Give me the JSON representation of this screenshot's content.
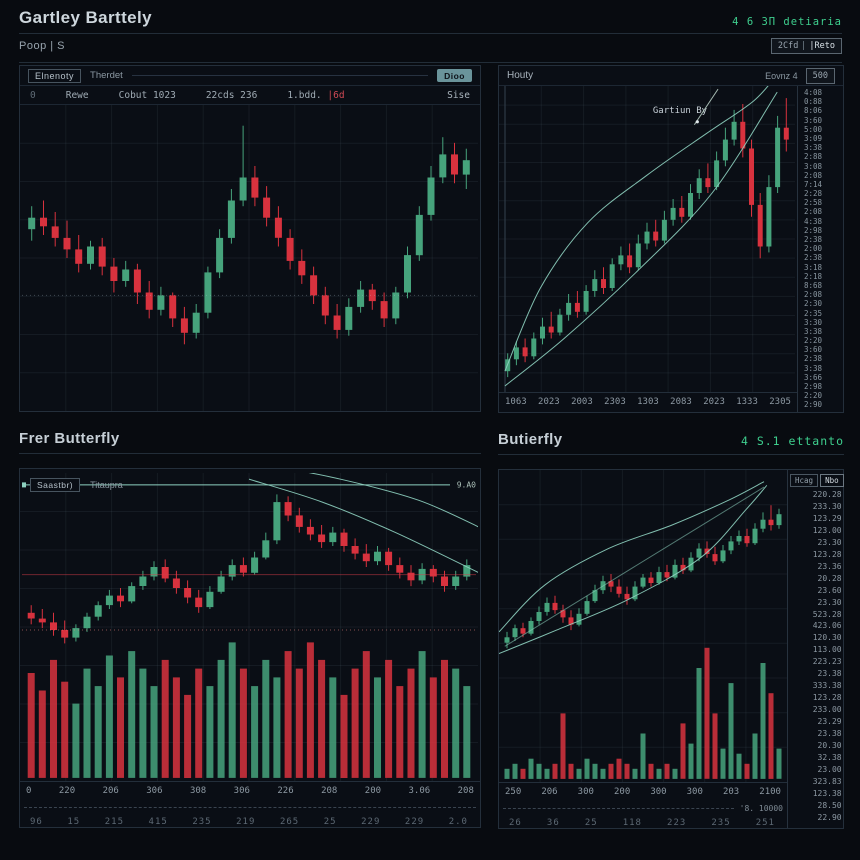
{
  "colors": {
    "up": "#46a37c",
    "down": "#d8323e",
    "teal": "#8ed1c0",
    "grid": "rgba(130,165,180,0.09)",
    "annotation": "#a8bdb4",
    "hline_label": "#a9bdb6"
  },
  "ui": {
    "header": {
      "title": "Gartley Barttely",
      "status_green": "4 6 3Π detiaria",
      "subtitle": "Poop | S",
      "toggle_left": "2Cfd",
      "toggle_right": "|Reto"
    },
    "p1": {
      "box": "Elnenoty",
      "tab": "Therdet",
      "button": "Dioo",
      "cell0": "0",
      "cell1": "Rewe",
      "cell2": "Cobut 1023",
      "cell3": "22cds 236",
      "cell4a": "1.bdd.",
      "cell4b": "|6d",
      "cell5": "Sise"
    },
    "p2": {
      "left": "Houty",
      "right": "Eovnz 4",
      "button": "500"
    },
    "sections": {
      "left": "Frer Butterfly",
      "right": "Butierfly",
      "right_green": "4 S.1 ettanto"
    },
    "p3": {
      "box": "Saastbr)",
      "tab": "Titaupra"
    },
    "p4": {
      "ybox_left": "Hcag",
      "ybox_right": "Nbo",
      "dash_label": "'8. 10000"
    }
  },
  "chart_data": [
    {
      "id": "p1",
      "type": "candlestick",
      "title": "Gartley pattern candlestick chart",
      "grid": {
        "v": 10,
        "h": 8
      },
      "band": [
        0.03,
        0.97
      ],
      "hlines": [
        {
          "v": 37,
          "color": "rgba(190,205,215,0.30)",
          "dash": "1,3"
        }
      ],
      "candles": [
        [
          60,
          68,
          56,
          64
        ],
        [
          64,
          70,
          58,
          61
        ],
        [
          61,
          66,
          54,
          57
        ],
        [
          57,
          63,
          50,
          53
        ],
        [
          53,
          58,
          45,
          48
        ],
        [
          48,
          56,
          46,
          54
        ],
        [
          54,
          57,
          44,
          47
        ],
        [
          47,
          50,
          38,
          42
        ],
        [
          42,
          49,
          40,
          46
        ],
        [
          46,
          48,
          34,
          38
        ],
        [
          38,
          42,
          29,
          32
        ],
        [
          32,
          40,
          30,
          37
        ],
        [
          37,
          38,
          26,
          29
        ],
        [
          29,
          33,
          20,
          24
        ],
        [
          24,
          34,
          22,
          31
        ],
        [
          31,
          47,
          29,
          45
        ],
        [
          45,
          60,
          43,
          57
        ],
        [
          57,
          74,
          55,
          70
        ],
        [
          70,
          96,
          68,
          78
        ],
        [
          78,
          82,
          68,
          71
        ],
        [
          71,
          75,
          61,
          64
        ],
        [
          64,
          68,
          54,
          57
        ],
        [
          57,
          60,
          46,
          49
        ],
        [
          49,
          53,
          41,
          44
        ],
        [
          44,
          47,
          34,
          37
        ],
        [
          37,
          40,
          27,
          30
        ],
        [
          30,
          34,
          22,
          25
        ],
        [
          25,
          36,
          23,
          33
        ],
        [
          33,
          42,
          31,
          39
        ],
        [
          39,
          41,
          32,
          35
        ],
        [
          35,
          38,
          26,
          29
        ],
        [
          29,
          40,
          27,
          38
        ],
        [
          38,
          54,
          36,
          51
        ],
        [
          51,
          68,
          49,
          65
        ],
        [
          65,
          82,
          63,
          78
        ],
        [
          78,
          92,
          76,
          86
        ],
        [
          86,
          90,
          76,
          79
        ],
        [
          79,
          88,
          74,
          84
        ]
      ]
    },
    {
      "id": "p2",
      "type": "candlestick",
      "title": "Hourly Gartley chart",
      "grid": {
        "v": 7,
        "h": 16
      },
      "band": [
        0.02,
        0.99
      ],
      "left_axis": true,
      "candles": [
        [
          6,
          12,
          4,
          10
        ],
        [
          10,
          16,
          8,
          14
        ],
        [
          14,
          17,
          9,
          11
        ],
        [
          11,
          19,
          10,
          17
        ],
        [
          17,
          24,
          15,
          21
        ],
        [
          21,
          26,
          17,
          19
        ],
        [
          19,
          27,
          18,
          25
        ],
        [
          25,
          32,
          23,
          29
        ],
        [
          29,
          33,
          24,
          26
        ],
        [
          26,
          35,
          25,
          33
        ],
        [
          33,
          40,
          31,
          37
        ],
        [
          37,
          41,
          32,
          34
        ],
        [
          34,
          44,
          33,
          42
        ],
        [
          42,
          48,
          40,
          45
        ],
        [
          45,
          49,
          39,
          41
        ],
        [
          41,
          52,
          40,
          49
        ],
        [
          49,
          56,
          47,
          53
        ],
        [
          53,
          57,
          48,
          50
        ],
        [
          50,
          60,
          49,
          57
        ],
        [
          57,
          64,
          55,
          61
        ],
        [
          61,
          65,
          56,
          58
        ],
        [
          58,
          69,
          57,
          66
        ],
        [
          66,
          74,
          64,
          71
        ],
        [
          71,
          76,
          66,
          68
        ],
        [
          68,
          80,
          67,
          77
        ],
        [
          77,
          88,
          75,
          84
        ],
        [
          84,
          94,
          82,
          90
        ],
        [
          90,
          96,
          78,
          81
        ],
        [
          81,
          84,
          58,
          62
        ],
        [
          62,
          66,
          44,
          48
        ],
        [
          48,
          72,
          46,
          68
        ],
        [
          68,
          92,
          66,
          88
        ],
        [
          88,
          98,
          80,
          84
        ]
      ],
      "overlays": [
        {
          "pts": [
            [
              2,
              6
            ],
            [
              14,
              34
            ],
            [
              30,
              56
            ],
            [
              50,
              72
            ],
            [
              70,
              86
            ],
            [
              86,
              97
            ],
            [
              94,
              106
            ]
          ]
        },
        {
          "pts": [
            [
              2,
              1
            ],
            [
              22,
              17
            ],
            [
              46,
              39
            ],
            [
              72,
              66
            ],
            [
              94,
              100
            ]
          ]
        }
      ],
      "annotation": {
        "text": "Gartiun By",
        "tx": 52,
        "tv": 93,
        "line": [
          [
            66,
            89
          ],
          [
            74,
            101
          ]
        ],
        "dot": [
          67,
          90
        ]
      },
      "y_ticks": [
        "4:08",
        "0:88",
        "8:06",
        "3:60",
        "5:00",
        "3:09",
        "3:38",
        "2:88",
        "3:08",
        "2:08",
        "7:14",
        "2:28",
        "2:58",
        "2:08",
        "4:38",
        "2:98",
        "2:38",
        "2:00",
        "2:38",
        "3:18",
        "2:18",
        "8:68",
        "2:08",
        "2:30",
        "2:35",
        "3:30",
        "3:38",
        "2:20",
        "3:60",
        "2:38",
        "3:38",
        "3:66",
        "2:98",
        "2:20",
        "2:90"
      ],
      "x_ticks": [
        "1063",
        "2023",
        "2003",
        "2303",
        "1303",
        "2083",
        "2023",
        "1333",
        "2305"
      ]
    },
    {
      "id": "p3",
      "type": "candlestick+volume",
      "title": "Frer Butterfly chart",
      "grid": {
        "v": 10,
        "h": 8
      },
      "band": [
        0.02,
        0.64
      ],
      "vol_h": 0.44,
      "candles": [
        [
          30,
          34,
          24,
          27
        ],
        [
          27,
          32,
          22,
          25
        ],
        [
          25,
          30,
          18,
          21
        ],
        [
          21,
          26,
          14,
          17
        ],
        [
          17,
          24,
          15,
          22
        ],
        [
          22,
          30,
          20,
          28
        ],
        [
          28,
          36,
          26,
          34
        ],
        [
          34,
          42,
          32,
          39
        ],
        [
          39,
          43,
          33,
          36
        ],
        [
          36,
          46,
          35,
          44
        ],
        [
          44,
          52,
          42,
          49
        ],
        [
          49,
          57,
          47,
          54
        ],
        [
          54,
          58,
          46,
          48
        ],
        [
          48,
          52,
          40,
          43
        ],
        [
          43,
          47,
          35,
          38
        ],
        [
          38,
          42,
          30,
          33
        ],
        [
          33,
          44,
          32,
          41
        ],
        [
          41,
          52,
          40,
          49
        ],
        [
          49,
          58,
          47,
          55
        ],
        [
          55,
          59,
          49,
          51
        ],
        [
          51,
          62,
          50,
          59
        ],
        [
          59,
          72,
          58,
          68
        ],
        [
          68,
          92,
          66,
          88
        ],
        [
          88,
          91,
          78,
          81
        ],
        [
          81,
          85,
          72,
          75
        ],
        [
          75,
          79,
          68,
          71
        ],
        [
          71,
          76,
          64,
          67
        ],
        [
          67,
          75,
          65,
          72
        ],
        [
          72,
          74,
          62,
          65
        ],
        [
          65,
          69,
          58,
          61
        ],
        [
          61,
          66,
          54,
          57
        ],
        [
          57,
          65,
          55,
          62
        ],
        [
          62,
          64,
          52,
          55
        ],
        [
          55,
          59,
          48,
          51
        ],
        [
          51,
          55,
          44,
          47
        ],
        [
          47,
          56,
          45,
          53
        ],
        [
          53,
          55,
          46,
          49
        ],
        [
          49,
          52,
          41,
          44
        ],
        [
          44,
          52,
          42,
          49
        ],
        [
          49,
          58,
          47,
          55
        ]
      ],
      "volumes": [
        24,
        20,
        27,
        22,
        17,
        25,
        21,
        28,
        23,
        29,
        25,
        21,
        27,
        23,
        19,
        25,
        21,
        27,
        31,
        25,
        21,
        27,
        23,
        29,
        25,
        31,
        27,
        23,
        19,
        25,
        29,
        23,
        27,
        21,
        25,
        29,
        23,
        27,
        25,
        21
      ],
      "hlines": [
        {
          "v": 97,
          "color": "#8ed1c0",
          "label": "9.A0",
          "tick": true
        },
        {
          "v": 50,
          "color": "rgba(214,60,72,0.50)"
        },
        {
          "v": 21,
          "color": "rgba(235,130,130,0.55)",
          "dash": "1,3"
        }
      ],
      "overlays": [
        {
          "pts": [
            [
              50,
              100
            ],
            [
              66,
              88
            ],
            [
              82,
              72
            ],
            [
              101,
              50
            ]
          ]
        },
        {
          "pts": [
            [
              53,
              108
            ],
            [
              70,
              100
            ],
            [
              87,
              89
            ],
            [
              101,
              74
            ]
          ]
        }
      ],
      "x_ticks": [
        "0",
        "220",
        "206",
        "306",
        "308",
        "306",
        "226",
        "208",
        "200",
        "3.06",
        "208"
      ],
      "x_ticks2": [
        "96",
        "15",
        "215",
        "415",
        "235",
        "219",
        "265",
        "25",
        "229",
        "229",
        "2.0"
      ]
    },
    {
      "id": "p4",
      "type": "candlestick+volume",
      "title": "Butterfly chart",
      "grid": {
        "v": 7,
        "h": 9
      },
      "band": [
        0.02,
        0.6
      ],
      "vol_h": 0.42,
      "candles": [
        [
          8,
          14,
          5,
          11
        ],
        [
          11,
          18,
          9,
          16
        ],
        [
          16,
          19,
          11,
          13
        ],
        [
          13,
          22,
          12,
          20
        ],
        [
          20,
          28,
          18,
          25
        ],
        [
          25,
          33,
          23,
          30
        ],
        [
          30,
          34,
          24,
          26
        ],
        [
          26,
          29,
          19,
          22
        ],
        [
          22,
          26,
          15,
          18
        ],
        [
          18,
          27,
          17,
          24
        ],
        [
          24,
          34,
          23,
          31
        ],
        [
          31,
          40,
          30,
          37
        ],
        [
          37,
          45,
          35,
          42
        ],
        [
          42,
          46,
          36,
          39
        ],
        [
          39,
          43,
          33,
          35
        ],
        [
          35,
          39,
          29,
          32
        ],
        [
          32,
          42,
          31,
          39
        ],
        [
          39,
          46,
          38,
          44
        ],
        [
          44,
          47,
          39,
          41
        ],
        [
          41,
          50,
          40,
          47
        ],
        [
          47,
          51,
          42,
          44
        ],
        [
          44,
          54,
          43,
          51
        ],
        [
          51,
          55,
          46,
          48
        ],
        [
          48,
          58,
          47,
          55
        ],
        [
          55,
          63,
          53,
          60
        ],
        [
          60,
          64,
          55,
          57
        ],
        [
          57,
          61,
          51,
          53
        ],
        [
          53,
          62,
          52,
          59
        ],
        [
          59,
          67,
          57,
          64
        ],
        [
          64,
          70,
          62,
          67
        ],
        [
          67,
          71,
          61,
          63
        ],
        [
          63,
          74,
          62,
          71
        ],
        [
          71,
          80,
          69,
          76
        ],
        [
          76,
          84,
          70,
          73
        ],
        [
          73,
          82,
          71,
          79
        ]
      ],
      "volumes": [
        2,
        3,
        2,
        4,
        3,
        2,
        3,
        13,
        3,
        2,
        4,
        3,
        2,
        3,
        4,
        3,
        2,
        9,
        3,
        2,
        3,
        2,
        11,
        7,
        22,
        26,
        13,
        6,
        19,
        5,
        3,
        9,
        23,
        17,
        6
      ],
      "overlays": [
        {
          "pts": [
            [
              0,
              14
            ],
            [
              16,
              40
            ],
            [
              38,
              60
            ],
            [
              60,
              73
            ],
            [
              80,
              87
            ],
            [
              92,
              97
            ]
          ]
        },
        {
          "pts": [
            [
              0,
              2
            ],
            [
              20,
              15
            ],
            [
              45,
              32
            ],
            [
              70,
              55
            ],
            [
              86,
              82
            ],
            [
              93,
              95
            ]
          ]
        },
        {
          "pts": [
            [
              2,
              6
            ],
            [
              47,
              50
            ],
            [
              92,
              94
            ]
          ],
          "op": 0.55
        }
      ],
      "y_ticks": [
        "220.28",
        "233.30",
        "123.29",
        "123.00",
        "23.30",
        "123.28",
        "23.36",
        "20.28",
        "23.60",
        "23.30",
        "523.28",
        "423.06",
        "120.30",
        "113.00",
        "223.23",
        "23.38",
        "333.38",
        "123.28",
        "233.00",
        "23.29",
        "23.38",
        "20.30",
        "32.38",
        "23.00",
        "323.83",
        "123.38",
        "28.50",
        "22.90"
      ],
      "x_ticks": [
        "250",
        "206",
        "300",
        "200",
        "300",
        "300",
        "203",
        "2100"
      ],
      "x_ticks2": [
        "26",
        "36",
        "25",
        "118",
        "223",
        "235",
        "251"
      ]
    }
  ]
}
